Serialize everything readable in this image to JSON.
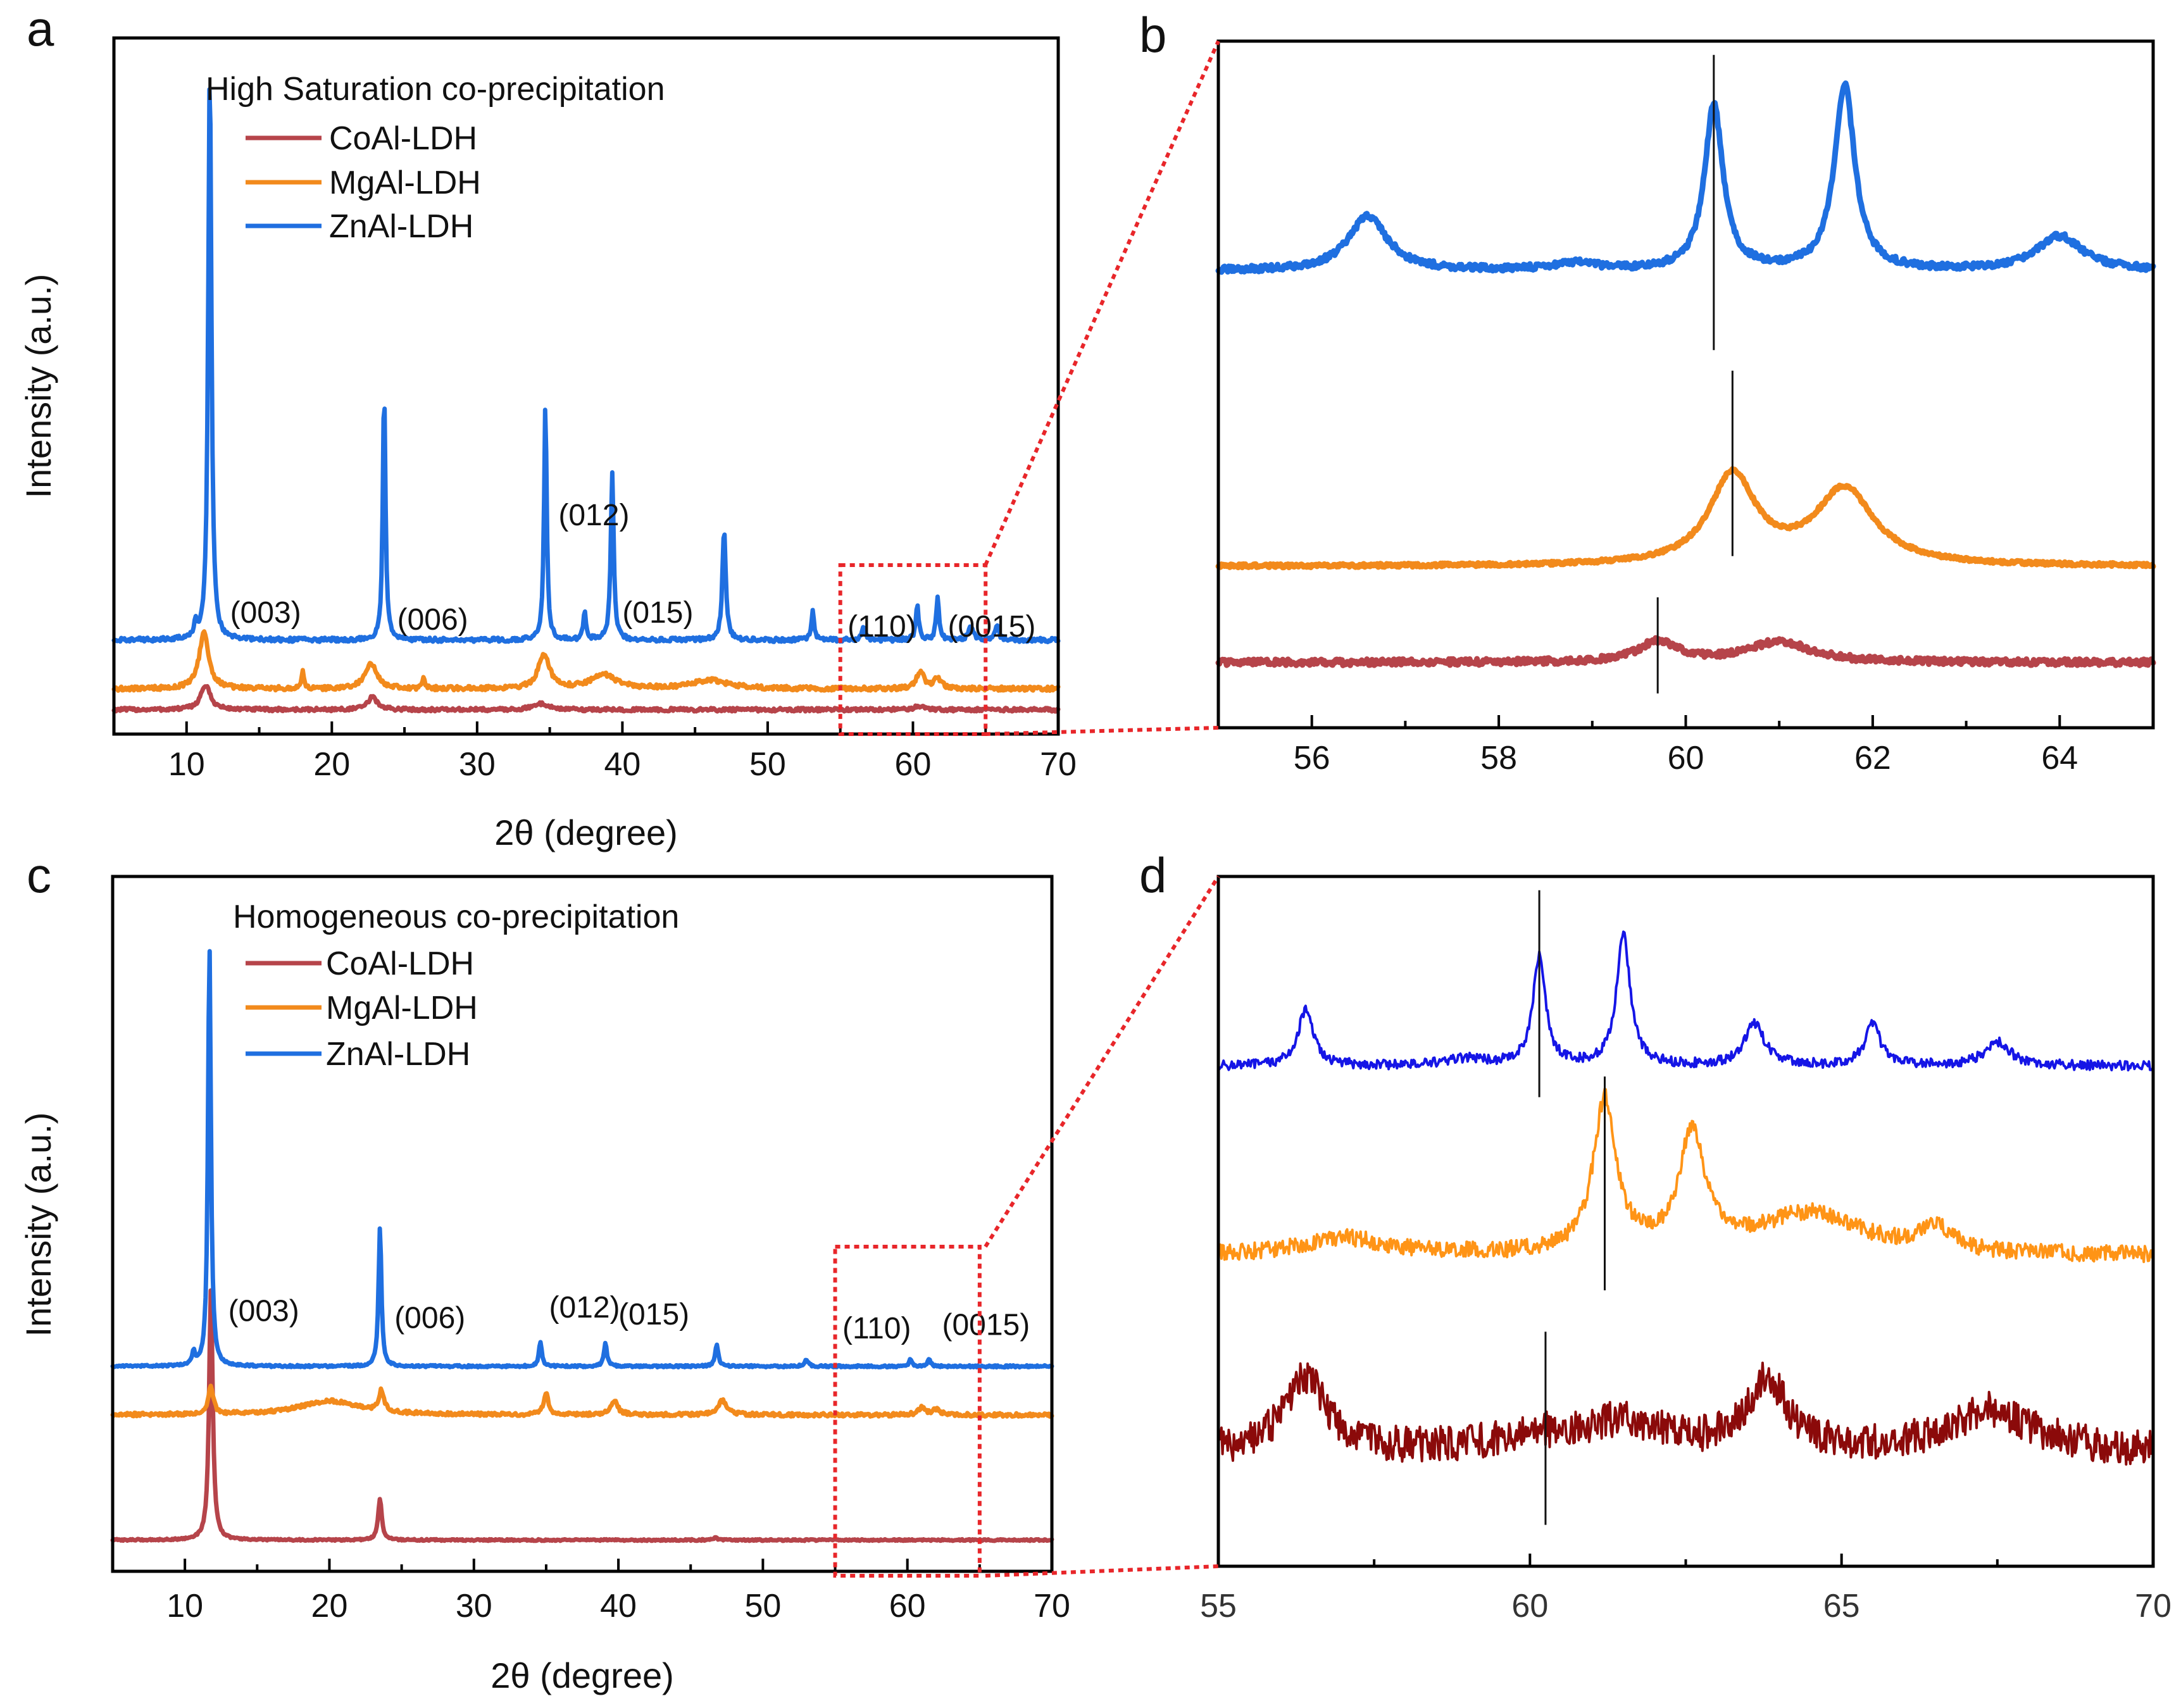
{
  "colors": {
    "CoAl-LDH": "#b6444a",
    "MgAl-LDH": "#f28a1c",
    "ZnAl-LDH": "#1f6fe0",
    "zoom_box": "#e8262a",
    "panel_d_blue": "#1515e6",
    "panel_d_orange": "#ff9416",
    "panel_d_red": "#8b0a0a"
  },
  "chart_data": [
    {
      "panel": "a",
      "type": "line",
      "legend_title": "High Saturation co-precipitation",
      "legend_position": "top-left",
      "xlabel": "2θ (degree)",
      "ylabel": "Intensity (a.u.)",
      "xlim": [
        5,
        70
      ],
      "xticks": [
        10,
        20,
        30,
        40,
        50,
        60,
        70
      ],
      "ylim": [
        0,
        100
      ],
      "yticks_shown": false,
      "zoom_region": [
        55,
        65
      ],
      "annotations": [
        {
          "text": "(003)",
          "x": 13,
          "y": 16
        },
        {
          "text": "(006)",
          "x": 24.5,
          "y": 15
        },
        {
          "text": "(012)",
          "x": 35.6,
          "y": 30
        },
        {
          "text": "(015)",
          "x": 40,
          "y": 16
        },
        {
          "text": "(110)",
          "x": 55.5,
          "y": 14
        },
        {
          "text": "(0015)",
          "x": 62.4,
          "y": 14
        }
      ],
      "series": [
        {
          "name": "CoAl-LDH",
          "baseline": 3.5,
          "noise": 0.25,
          "peaks": [
            [
              11.3,
              3.5,
              0.4
            ],
            [
              22.8,
              1.8,
              0.4
            ],
            [
              34.4,
              0.9,
              0.6
            ],
            [
              60.5,
              0.5,
              0.5
            ]
          ]
        },
        {
          "name": "MgAl-LDH",
          "baseline": 6.5,
          "noise": 0.3,
          "peaks": [
            [
              11.2,
              8,
              0.4
            ],
            [
              18.0,
              2.5,
              0.1
            ],
            [
              22.7,
              3.5,
              0.5
            ],
            [
              26.3,
              1.5,
              0.1
            ],
            [
              34.6,
              5,
              0.45
            ],
            [
              38.7,
              2,
              1.0
            ],
            [
              46.0,
              1.2,
              1.5
            ],
            [
              60.5,
              2.5,
              0.3
            ],
            [
              61.7,
              1.5,
              0.3
            ]
          ]
        },
        {
          "name": "ZnAl-LDH",
          "baseline": 13.5,
          "noise": 0.3,
          "peaks": [
            [
              11.6,
              83,
              0.13
            ],
            [
              10.6,
              2,
              0.1
            ],
            [
              23.6,
              36,
              0.11
            ],
            [
              34.7,
              34,
              0.11
            ],
            [
              37.4,
              4,
              0.11
            ],
            [
              39.3,
              24,
              0.12
            ],
            [
              47.0,
              16,
              0.14
            ],
            [
              53.1,
              4,
              0.12
            ],
            [
              56.6,
              2,
              0.15
            ],
            [
              60.3,
              5,
              0.12
            ],
            [
              61.7,
              6,
              0.12
            ],
            [
              64.0,
              2,
              0.2
            ],
            [
              65.8,
              2,
              0.15
            ]
          ]
        }
      ]
    },
    {
      "panel": "b",
      "type": "line",
      "xlim": [
        55,
        65
      ],
      "xticks": [
        56,
        58,
        60,
        62,
        64
      ],
      "ylim": [
        0,
        100
      ],
      "yticks_shown": false,
      "reference_lines": [
        {
          "series": "ZnAl-LDH",
          "x": 60.3,
          "y_range": [
            55,
            98
          ]
        },
        {
          "series": "MgAl-LDH",
          "x": 60.5,
          "y_range": [
            25,
            52
          ]
        },
        {
          "series": "CoAl-LDH",
          "x": 59.7,
          "y_range": [
            5,
            19
          ]
        }
      ],
      "series": [
        {
          "name": "ZnAl-LDH",
          "baseline": 66.5,
          "noise": 0.45,
          "peaks": [
            [
              56.6,
              8,
              0.25
            ],
            [
              58.8,
              1,
              0.3
            ],
            [
              60.3,
              24,
              0.12
            ],
            [
              61.7,
              27,
              0.13
            ],
            [
              64.0,
              5,
              0.3
            ]
          ]
        },
        {
          "name": "MgAl-LDH",
          "baseline": 23.5,
          "noise": 0.25,
          "peaks": [
            [
              60.5,
              13,
              0.3
            ],
            [
              61.7,
              11,
              0.38
            ]
          ]
        },
        {
          "name": "CoAl-LDH",
          "baseline": 9.5,
          "noise": 0.45,
          "peaks": [
            [
              59.7,
              3,
              0.25
            ],
            [
              61.0,
              3,
              0.4
            ]
          ]
        }
      ]
    },
    {
      "panel": "c",
      "type": "line",
      "legend_title": "Homogeneous co-precipitation",
      "legend_position": "top-left",
      "xlabel": "2θ (degree)",
      "ylabel": "Intensity (a.u.)",
      "xlim": [
        5,
        70
      ],
      "xticks": [
        10,
        20,
        30,
        40,
        50,
        60,
        70
      ],
      "ylim": [
        0,
        100
      ],
      "yticks_shown": false,
      "zoom_region": [
        55,
        65
      ],
      "annotations": [
        {
          "text": "(003)",
          "x": 13,
          "y": 36
        },
        {
          "text": "(006)",
          "x": 24.5,
          "y": 35
        },
        {
          "text": "(012)",
          "x": 35.2,
          "y": 36.5
        },
        {
          "text": "(015)",
          "x": 40,
          "y": 35.5
        },
        {
          "text": "(110)",
          "x": 55.5,
          "y": 33.5
        },
        {
          "text": "(0015)",
          "x": 62.4,
          "y": 34
        }
      ],
      "series": [
        {
          "name": "CoAl-LDH",
          "baseline": 4.5,
          "noise": 0.12,
          "peaks": [
            [
              11.8,
              36,
              0.15
            ],
            [
              23.5,
              6,
              0.15
            ],
            [
              46.7,
              0.3,
              0.2
            ]
          ]
        },
        {
          "name": "MgAl-LDH",
          "baseline": 22.5,
          "noise": 0.25,
          "peaks": [
            [
              11.8,
              4,
              0.2
            ],
            [
              20.0,
              2,
              2.5
            ],
            [
              23.6,
              3,
              0.2
            ],
            [
              35.0,
              3,
              0.2
            ],
            [
              39.7,
              2,
              0.3
            ],
            [
              47.2,
              2,
              0.4
            ],
            [
              61.0,
              1,
              0.3
            ],
            [
              62.0,
              0.8,
              0.3
            ]
          ]
        },
        {
          "name": "ZnAl-LDH",
          "baseline": 29.5,
          "noise": 0.15,
          "peaks": [
            [
              11.7,
              61,
              0.12
            ],
            [
              10.6,
              2,
              0.1
            ],
            [
              23.5,
              20,
              0.12
            ],
            [
              34.6,
              3.5,
              0.12
            ],
            [
              39.1,
              3.5,
              0.12
            ],
            [
              46.8,
              3,
              0.14
            ],
            [
              53.0,
              1,
              0.15
            ],
            [
              60.2,
              1,
              0.12
            ],
            [
              61.5,
              1.2,
              0.12
            ]
          ]
        }
      ]
    },
    {
      "panel": "d",
      "type": "line",
      "xlim": [
        55,
        70
      ],
      "xticks": [
        55,
        60,
        65,
        70
      ],
      "ylim": [
        0,
        100
      ],
      "yticks_shown": false,
      "reference_lines": [
        {
          "series": "ZnAl-LDH",
          "x": 60.15,
          "y_range": [
            68,
            98
          ]
        },
        {
          "series": "MgAl-LDH",
          "x": 61.2,
          "y_range": [
            40,
            71
          ]
        },
        {
          "series": "CoAl-LDH",
          "x": 60.25,
          "y_range": [
            6,
            34
          ]
        }
      ],
      "series": [
        {
          "name": "ZnAl-LDH",
          "color_key": "panel_d_blue",
          "baseline": 72.5,
          "noise": 0.7,
          "peaks": [
            [
              56.4,
              8,
              0.15
            ],
            [
              60.15,
              16,
              0.12
            ],
            [
              61.5,
              19,
              0.13
            ],
            [
              63.6,
              6,
              0.2
            ],
            [
              65.5,
              6,
              0.15
            ],
            [
              67.5,
              3.5,
              0.25
            ],
            [
              59.0,
              1,
              0.4
            ]
          ]
        },
        {
          "name": "MgAl-LDH",
          "color_key": "panel_d_orange",
          "baseline": 45,
          "noise": 1.2,
          "peaks": [
            [
              57.0,
              2.5,
              0.8
            ],
            [
              61.2,
              22,
              0.22
            ],
            [
              62.6,
              17,
              0.25
            ],
            [
              64.5,
              6,
              1.0
            ],
            [
              66.5,
              3.5,
              0.3
            ]
          ]
        },
        {
          "name": "CoAl-LDH",
          "color_key": "panel_d_red",
          "baseline": 16.5,
          "noise": 2.6,
          "peaks": [
            [
              56.4,
              11,
              0.4
            ],
            [
              60.0,
              2,
              0.8
            ],
            [
              61.5,
              4,
              0.8
            ],
            [
              63.8,
              10,
              0.4
            ],
            [
              67.4,
              6,
              0.8
            ]
          ]
        }
      ]
    }
  ]
}
